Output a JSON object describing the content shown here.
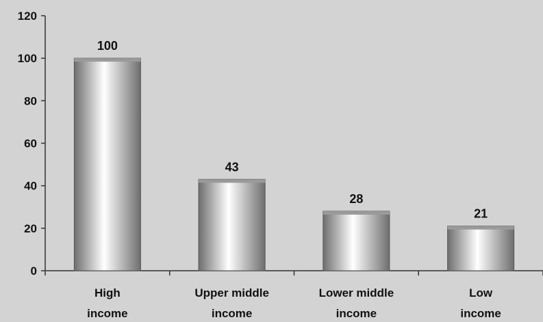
{
  "chart_data": {
    "type": "bar",
    "categories": [
      [
        "High",
        "income"
      ],
      [
        "Upper middle",
        "income"
      ],
      [
        "Lower middle",
        "income"
      ],
      [
        "Low",
        "income"
      ]
    ],
    "values": [
      100,
      43,
      28,
      21
    ],
    "data_labels": [
      "100",
      "43",
      "28",
      "21"
    ],
    "y_ticks": [
      "0",
      "20",
      "40",
      "60",
      "80",
      "100",
      "120"
    ],
    "ylim": [
      0,
      120
    ],
    "grid": false,
    "legend": "none",
    "colors": {
      "background": "#d3d3d3",
      "axis": "#333333",
      "bar_dark": "#6e6e6e",
      "bar_light": "#ffffff",
      "bar_top": "#9a9a9a"
    }
  }
}
